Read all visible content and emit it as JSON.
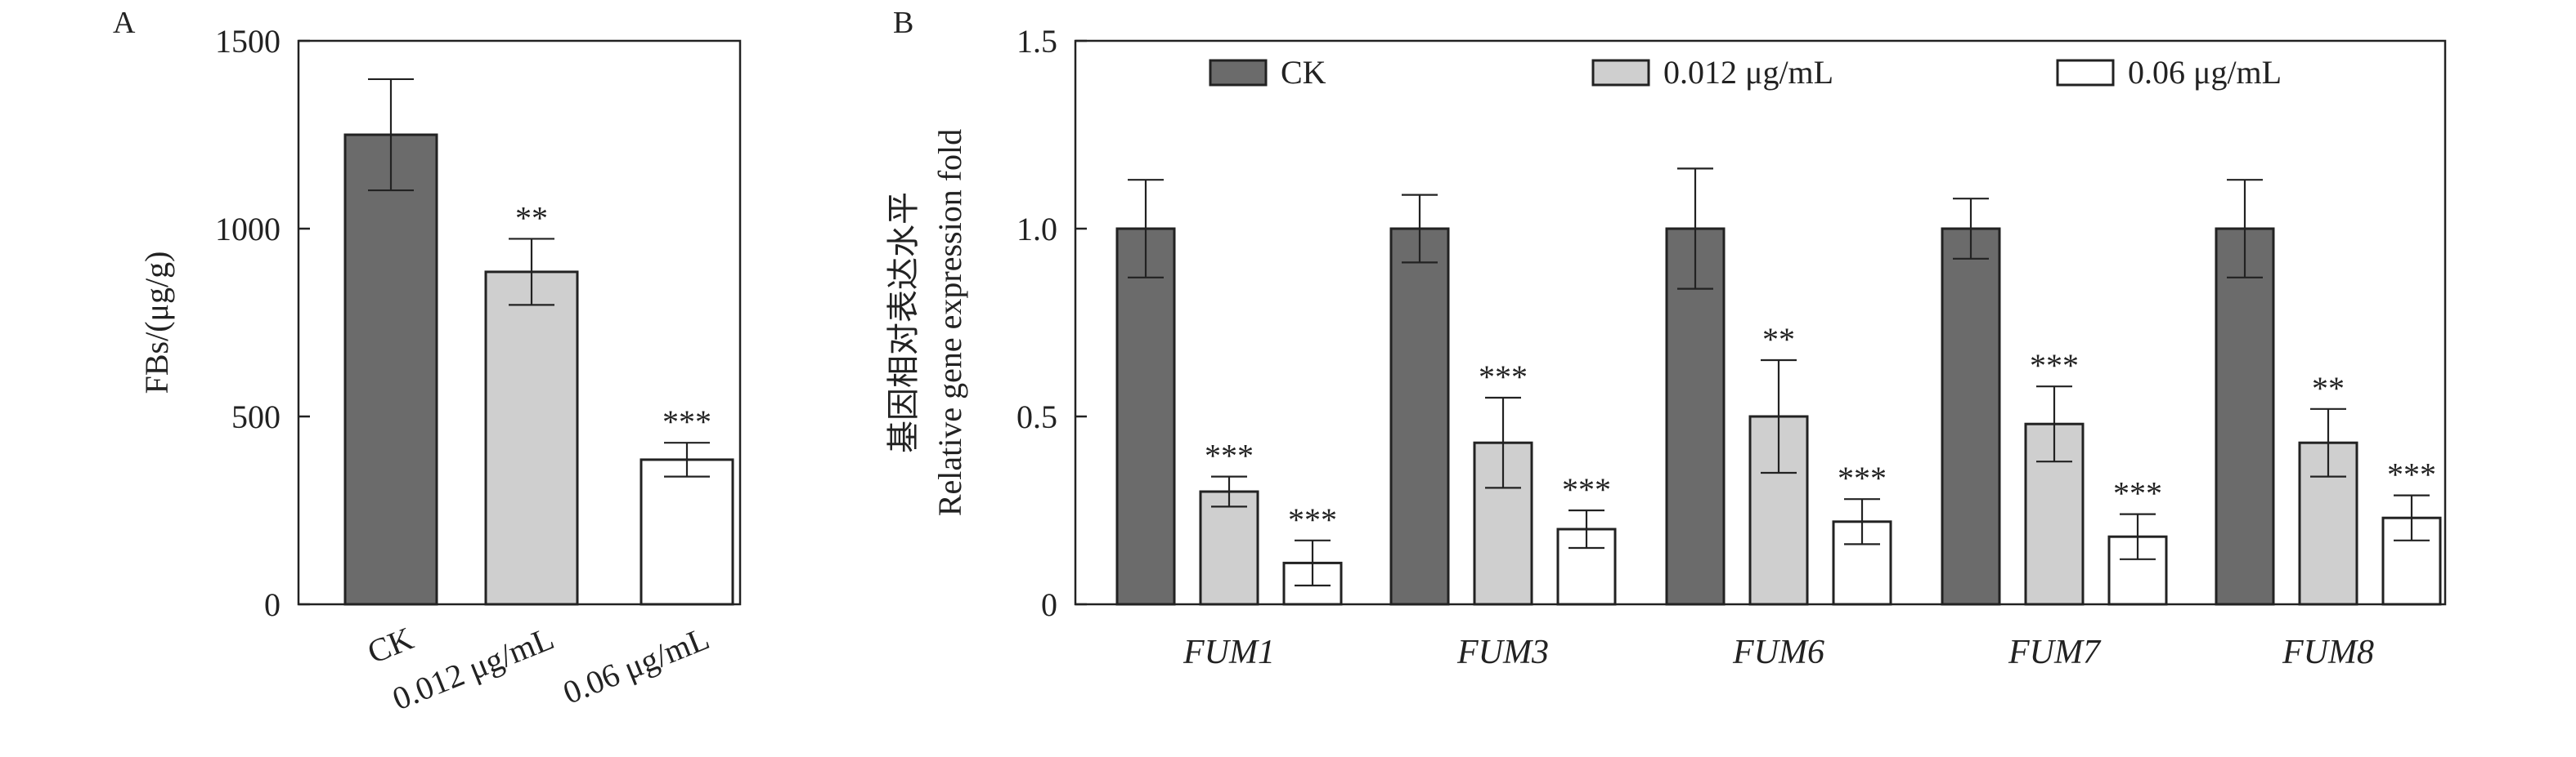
{
  "colors": {
    "CK": "#6b6b6b",
    "0.012 μg/mL": "#cfcfcf",
    "0.06 μg/mL": "#ffffff",
    "stroke": "#222222"
  },
  "chart_data": [
    {
      "type": "bar",
      "panel": "A",
      "title": "",
      "xlabel": "",
      "ylabel": "FBs/(μg/g)",
      "ylim": [
        0,
        1500
      ],
      "yticks": [
        0,
        500,
        1000,
        1500
      ],
      "categories": [
        "CK",
        "0.012 μg/mL",
        "0.06 μg/mL"
      ],
      "values": [
        1250,
        885,
        385
      ],
      "errors": [
        148,
        88,
        45
      ],
      "significance": [
        "",
        "**",
        "***"
      ],
      "grid": false
    },
    {
      "type": "bar",
      "panel": "B",
      "title": "",
      "xlabel": "",
      "ylabel": [
        "基因相对表达水平",
        "Relative gene expression fold"
      ],
      "ylim": [
        0,
        1.5
      ],
      "yticks": [
        0,
        0.5,
        1.0,
        1.5
      ],
      "yticklabels": [
        "0",
        "0.5",
        "1.0",
        "1.5"
      ],
      "categories": [
        "FUM1",
        "FUM3",
        "FUM6",
        "FUM7",
        "FUM8"
      ],
      "legend_position": "top",
      "grid": false,
      "series": [
        {
          "name": "CK",
          "values": [
            1.0,
            1.0,
            1.0,
            1.0,
            1.0
          ],
          "errors": [
            0.13,
            0.09,
            0.16,
            0.08,
            0.13
          ],
          "significance": [
            "",
            "",
            "",
            "",
            ""
          ]
        },
        {
          "name": "0.012 μg/mL",
          "values": [
            0.3,
            0.43,
            0.5,
            0.48,
            0.43
          ],
          "errors": [
            0.04,
            0.12,
            0.15,
            0.1,
            0.09
          ],
          "significance": [
            "***",
            "***",
            "**",
            "***",
            "**"
          ]
        },
        {
          "name": "0.06 μg/mL",
          "values": [
            0.11,
            0.2,
            0.22,
            0.18,
            0.23
          ],
          "errors": [
            0.06,
            0.05,
            0.06,
            0.06,
            0.06
          ],
          "significance": [
            "***",
            "***",
            "***",
            "***",
            "***"
          ]
        }
      ]
    }
  ]
}
